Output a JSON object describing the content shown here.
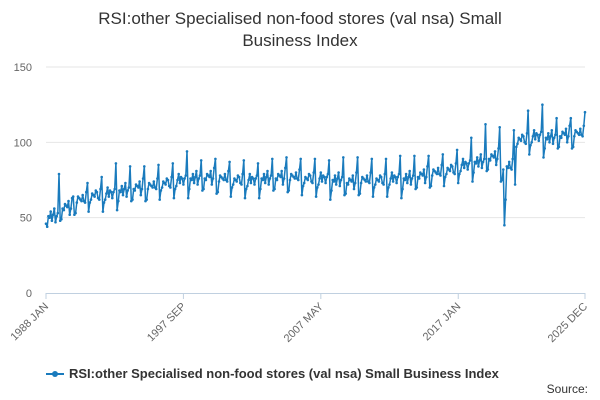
{
  "title_lines": [
    "RSI:other Specialised non-food stores (val nsa) Small",
    "Business Index"
  ],
  "source_label": "Source:",
  "chart_data": {
    "type": "line",
    "title": "RSI:other Specialised non-food stores (val nsa) Small Business Index",
    "xlabel": "",
    "ylabel": "",
    "ylim": [
      0,
      150
    ],
    "yticks": [
      0,
      50,
      100,
      150
    ],
    "x_start": "1988 JAN",
    "x_end": "2025 DEC",
    "x_tick_labels": [
      "1988 JAN",
      "1997 SEP",
      "2007 MAY",
      "2017 JAN",
      "2025 DEC"
    ],
    "grid": "horizontal",
    "legend_position": "bottom",
    "colors": {
      "series": "#1a7bbd",
      "grid": "#e6e6e6",
      "axis": "#c0d0e0"
    },
    "series": [
      {
        "name": "RSI:other Specialised non-food stores (val nsa) Small Business Index",
        "annual_mean": [
          [
            1988,
            51
          ],
          [
            1989,
            57
          ],
          [
            1990,
            62
          ],
          [
            1991,
            65
          ],
          [
            1992,
            66
          ],
          [
            1993,
            68
          ],
          [
            1994,
            70
          ],
          [
            1995,
            71
          ],
          [
            1996,
            73
          ],
          [
            1997,
            75
          ],
          [
            1998,
            76
          ],
          [
            1999,
            77
          ],
          [
            2000,
            76
          ],
          [
            2001,
            75
          ],
          [
            2002,
            75
          ],
          [
            2003,
            76
          ],
          [
            2004,
            77
          ],
          [
            2005,
            77
          ],
          [
            2006,
            76
          ],
          [
            2007,
            76
          ],
          [
            2008,
            75
          ],
          [
            2009,
            74
          ],
          [
            2010,
            75
          ],
          [
            2011,
            75
          ],
          [
            2012,
            76
          ],
          [
            2013,
            76
          ],
          [
            2014,
            78
          ],
          [
            2015,
            80
          ],
          [
            2016,
            82
          ],
          [
            2017,
            85
          ],
          [
            2018,
            87
          ],
          [
            2019,
            90
          ],
          [
            2020,
            84
          ],
          [
            2021,
            102
          ],
          [
            2022,
            104
          ],
          [
            2023,
            103
          ],
          [
            2024,
            105
          ],
          [
            2025,
            106
          ]
        ],
        "december_peak": [
          [
            1988,
            79
          ],
          [
            1989,
            64
          ],
          [
            1990,
            73
          ],
          [
            1991,
            77
          ],
          [
            1992,
            86
          ],
          [
            1993,
            84
          ],
          [
            1994,
            84
          ],
          [
            1995,
            85
          ],
          [
            1996,
            86
          ],
          [
            1997,
            94
          ],
          [
            1998,
            88
          ],
          [
            1999,
            89
          ],
          [
            2000,
            87
          ],
          [
            2001,
            88
          ],
          [
            2002,
            86
          ],
          [
            2003,
            89
          ],
          [
            2004,
            90
          ],
          [
            2005,
            89
          ],
          [
            2006,
            89
          ],
          [
            2007,
            88
          ],
          [
            2008,
            90
          ],
          [
            2009,
            90
          ],
          [
            2010,
            89
          ],
          [
            2011,
            89
          ],
          [
            2012,
            91
          ],
          [
            2013,
            91
          ],
          [
            2014,
            91
          ],
          [
            2015,
            92
          ],
          [
            2016,
            95
          ],
          [
            2017,
            103
          ],
          [
            2018,
            112
          ],
          [
            2019,
            110
          ],
          [
            2020,
            108
          ],
          [
            2021,
            121
          ],
          [
            2022,
            125
          ],
          [
            2023,
            116
          ],
          [
            2024,
            116
          ],
          [
            2025,
            120
          ]
        ],
        "notable_lows": [
          [
            "1988 JAN",
            46
          ],
          [
            "2020 APR",
            45
          ],
          [
            "2020 MAY",
            62
          ],
          [
            "2021 JAN",
            72
          ]
        ]
      }
    ]
  }
}
